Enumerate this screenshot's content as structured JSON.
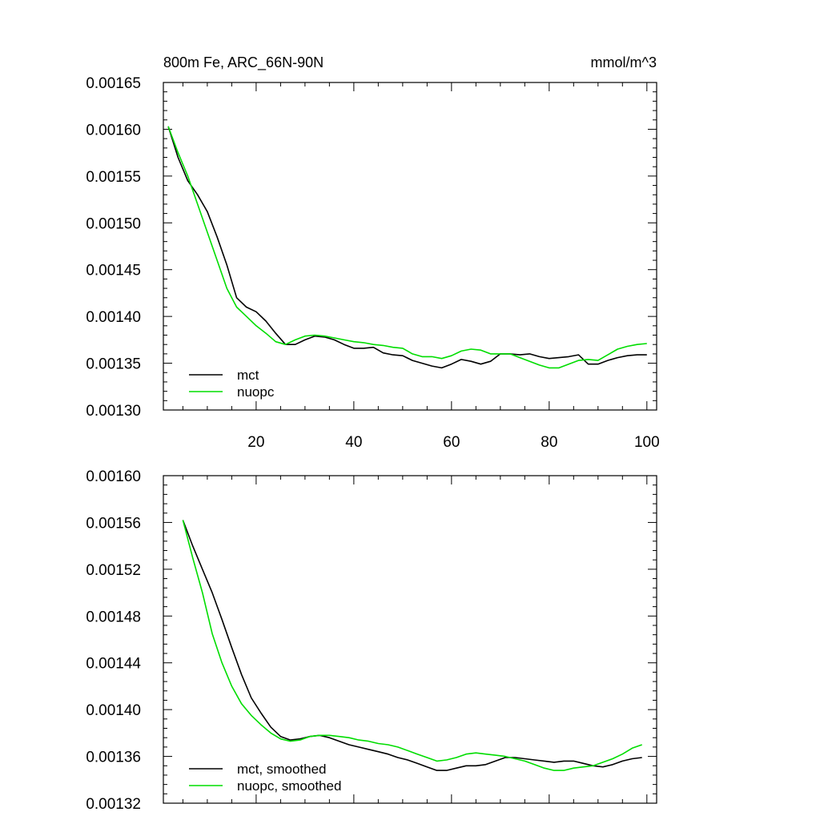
{
  "chart_data": [
    {
      "type": "line",
      "title": "800m Fe, ARC_66N-90N",
      "units": "mmol/m^3",
      "xlim": [
        1,
        102
      ],
      "ylim": [
        0.0013,
        0.00165
      ],
      "xticks": [
        20,
        40,
        60,
        80,
        100
      ],
      "xtick_labels": [
        "20",
        "40",
        "60",
        "80",
        "100"
      ],
      "yticks": [
        0.0013,
        0.00135,
        0.0014,
        0.00145,
        0.0015,
        0.00155,
        0.0016,
        0.00165
      ],
      "ytick_labels": [
        "0.00130",
        "0.00135",
        "0.00140",
        "0.00145",
        "0.00150",
        "0.00155",
        "0.00160",
        "0.00165"
      ],
      "legend_position": "bottom-left",
      "series": [
        {
          "name": "mct",
          "color": "#000000",
          "points": [
            [
              2,
              0.001603
            ],
            [
              4,
              0.00157
            ],
            [
              6,
              0.001545
            ],
            [
              8,
              0.00153
            ],
            [
              10,
              0.001512
            ],
            [
              12,
              0.001485
            ],
            [
              14,
              0.001455
            ],
            [
              16,
              0.00142
            ],
            [
              18,
              0.00141
            ],
            [
              20,
              0.001405
            ],
            [
              22,
              0.001395
            ],
            [
              24,
              0.001382
            ],
            [
              26,
              0.00137
            ],
            [
              28,
              0.00137
            ],
            [
              30,
              0.001375
            ],
            [
              32,
              0.001379
            ],
            [
              34,
              0.001378
            ],
            [
              36,
              0.001375
            ],
            [
              38,
              0.00137
            ],
            [
              40,
              0.001366
            ],
            [
              42,
              0.001366
            ],
            [
              44,
              0.001367
            ],
            [
              46,
              0.001361
            ],
            [
              48,
              0.001359
            ],
            [
              50,
              0.001358
            ],
            [
              52,
              0.001353
            ],
            [
              54,
              0.00135
            ],
            [
              56,
              0.001347
            ],
            [
              58,
              0.001345
            ],
            [
              60,
              0.001349
            ],
            [
              62,
              0.001354
            ],
            [
              64,
              0.001352
            ],
            [
              66,
              0.001349
            ],
            [
              68,
              0.001352
            ],
            [
              70,
              0.00136
            ],
            [
              72,
              0.00136
            ],
            [
              74,
              0.001359
            ],
            [
              76,
              0.00136
            ],
            [
              78,
              0.001357
            ],
            [
              80,
              0.001355
            ],
            [
              82,
              0.001356
            ],
            [
              84,
              0.001357
            ],
            [
              86,
              0.001359
            ],
            [
              88,
              0.001349
            ],
            [
              90,
              0.001349
            ],
            [
              92,
              0.001353
            ],
            [
              94,
              0.001356
            ],
            [
              96,
              0.001358
            ],
            [
              98,
              0.001359
            ],
            [
              100,
              0.001359
            ]
          ]
        },
        {
          "name": "nuopc",
          "color": "#00dd00",
          "points": [
            [
              2,
              0.001603
            ],
            [
              4,
              0.001575
            ],
            [
              6,
              0.00155
            ],
            [
              8,
              0.00152
            ],
            [
              10,
              0.00149
            ],
            [
              12,
              0.00146
            ],
            [
              14,
              0.00143
            ],
            [
              16,
              0.00141
            ],
            [
              18,
              0.0014
            ],
            [
              20,
              0.00139
            ],
            [
              22,
              0.001382
            ],
            [
              24,
              0.001373
            ],
            [
              26,
              0.00137
            ],
            [
              28,
              0.001375
            ],
            [
              30,
              0.001379
            ],
            [
              32,
              0.00138
            ],
            [
              34,
              0.001379
            ],
            [
              36,
              0.001377
            ],
            [
              38,
              0.001375
            ],
            [
              40,
              0.001373
            ],
            [
              42,
              0.001372
            ],
            [
              44,
              0.00137
            ],
            [
              46,
              0.001369
            ],
            [
              48,
              0.001367
            ],
            [
              50,
              0.001366
            ],
            [
              52,
              0.00136
            ],
            [
              54,
              0.001357
            ],
            [
              56,
              0.001357
            ],
            [
              58,
              0.001355
            ],
            [
              60,
              0.001358
            ],
            [
              62,
              0.001363
            ],
            [
              64,
              0.001365
            ],
            [
              66,
              0.001364
            ],
            [
              68,
              0.00136
            ],
            [
              70,
              0.00136
            ],
            [
              72,
              0.00136
            ],
            [
              74,
              0.001356
            ],
            [
              76,
              0.001352
            ],
            [
              78,
              0.001348
            ],
            [
              80,
              0.001345
            ],
            [
              82,
              0.001345
            ],
            [
              84,
              0.001349
            ],
            [
              86,
              0.001353
            ],
            [
              88,
              0.001354
            ],
            [
              90,
              0.001353
            ],
            [
              92,
              0.001359
            ],
            [
              94,
              0.001365
            ],
            [
              96,
              0.001368
            ],
            [
              98,
              0.00137
            ],
            [
              100,
              0.001371
            ]
          ]
        }
      ]
    },
    {
      "type": "line",
      "title": "",
      "xlim": [
        1,
        102
      ],
      "ylim": [
        0.00132,
        0.0016
      ],
      "xticks": [
        20,
        40,
        60,
        80,
        100
      ],
      "xtick_labels": [],
      "yticks": [
        0.00132,
        0.00136,
        0.0014,
        0.00144,
        0.00148,
        0.00152,
        0.00156,
        0.0016
      ],
      "ytick_labels": [
        "0.00132",
        "0.00136",
        "0.00140",
        "0.00144",
        "0.00148",
        "0.00152",
        "0.00156",
        "0.00160"
      ],
      "legend_position": "bottom-left",
      "series": [
        {
          "name": "mct, smoothed",
          "color": "#000000",
          "points": [
            [
              5,
              0.001562
            ],
            [
              7,
              0.00154
            ],
            [
              9,
              0.00152
            ],
            [
              11,
              0.0015
            ],
            [
              13,
              0.001477
            ],
            [
              15,
              0.001453
            ],
            [
              17,
              0.00143
            ],
            [
              19,
              0.00141
            ],
            [
              21,
              0.001397
            ],
            [
              23,
              0.001385
            ],
            [
              25,
              0.001377
            ],
            [
              27,
              0.001374
            ],
            [
              29,
              0.001375
            ],
            [
              31,
              0.001377
            ],
            [
              33,
              0.001378
            ],
            [
              35,
              0.001376
            ],
            [
              37,
              0.001373
            ],
            [
              39,
              0.00137
            ],
            [
              41,
              0.001368
            ],
            [
              43,
              0.001366
            ],
            [
              45,
              0.001364
            ],
            [
              47,
              0.001362
            ],
            [
              49,
              0.001359
            ],
            [
              51,
              0.001357
            ],
            [
              53,
              0.001354
            ],
            [
              55,
              0.001351
            ],
            [
              57,
              0.001348
            ],
            [
              59,
              0.001348
            ],
            [
              61,
              0.00135
            ],
            [
              63,
              0.001352
            ],
            [
              65,
              0.001352
            ],
            [
              67,
              0.001353
            ],
            [
              69,
              0.001356
            ],
            [
              71,
              0.001359
            ],
            [
              73,
              0.001359
            ],
            [
              75,
              0.001358
            ],
            [
              77,
              0.001357
            ],
            [
              79,
              0.001356
            ],
            [
              81,
              0.001355
            ],
            [
              83,
              0.001356
            ],
            [
              85,
              0.001356
            ],
            [
              87,
              0.001354
            ],
            [
              89,
              0.001352
            ],
            [
              91,
              0.001351
            ],
            [
              93,
              0.001353
            ],
            [
              95,
              0.001356
            ],
            [
              97,
              0.001358
            ],
            [
              99,
              0.001359
            ]
          ]
        },
        {
          "name": "nuopc, smoothed",
          "color": "#00dd00",
          "points": [
            [
              5,
              0.001562
            ],
            [
              7,
              0.00153
            ],
            [
              9,
              0.0015
            ],
            [
              11,
              0.001465
            ],
            [
              13,
              0.00144
            ],
            [
              15,
              0.00142
            ],
            [
              17,
              0.001405
            ],
            [
              19,
              0.001395
            ],
            [
              21,
              0.001387
            ],
            [
              23,
              0.00138
            ],
            [
              25,
              0.001375
            ],
            [
              27,
              0.001373
            ],
            [
              29,
              0.001374
            ],
            [
              31,
              0.001377
            ],
            [
              33,
              0.001378
            ],
            [
              35,
              0.001378
            ],
            [
              37,
              0.001377
            ],
            [
              39,
              0.001376
            ],
            [
              41,
              0.001374
            ],
            [
              43,
              0.001373
            ],
            [
              45,
              0.001371
            ],
            [
              47,
              0.00137
            ],
            [
              49,
              0.001368
            ],
            [
              51,
              0.001365
            ],
            [
              53,
              0.001362
            ],
            [
              55,
              0.001359
            ],
            [
              57,
              0.001356
            ],
            [
              59,
              0.001357
            ],
            [
              61,
              0.001359
            ],
            [
              63,
              0.001362
            ],
            [
              65,
              0.001363
            ],
            [
              67,
              0.001362
            ],
            [
              69,
              0.001361
            ],
            [
              71,
              0.00136
            ],
            [
              73,
              0.001358
            ],
            [
              75,
              0.001356
            ],
            [
              77,
              0.001353
            ],
            [
              79,
              0.00135
            ],
            [
              81,
              0.001348
            ],
            [
              83,
              0.001348
            ],
            [
              85,
              0.00135
            ],
            [
              87,
              0.001351
            ],
            [
              89,
              0.001352
            ],
            [
              91,
              0.001355
            ],
            [
              93,
              0.001358
            ],
            [
              95,
              0.001362
            ],
            [
              97,
              0.001367
            ],
            [
              99,
              0.00137
            ]
          ]
        }
      ]
    }
  ]
}
